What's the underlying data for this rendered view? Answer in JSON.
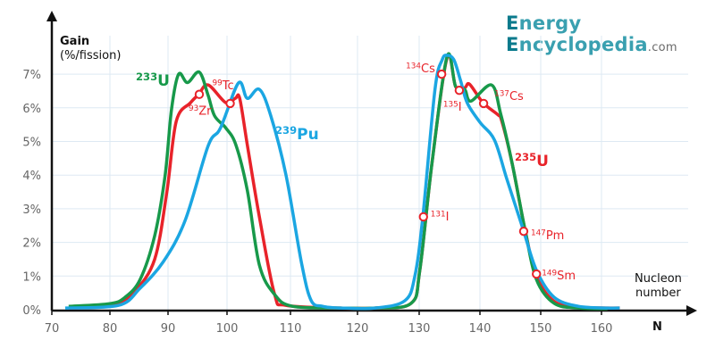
{
  "logo": {
    "first_initial": "E",
    "first_rest": "nergy ",
    "second_initial": "E",
    "second_rest": "ncyclopedia",
    "suffix": ".com"
  },
  "chart_data": {
    "type": "line",
    "ylabel": "Gain",
    "ylabel_unit": "(%/fission)",
    "xlabel_symbol": "N",
    "xlabel": [
      "Nucleon",
      "number"
    ],
    "xlim": [
      70,
      165
    ],
    "ylim": [
      0,
      8
    ],
    "x_ticks": [
      70,
      80,
      90,
      100,
      110,
      120,
      130,
      140,
      150,
      160
    ],
    "x_tick_labels": [
      "70",
      "80",
      "90",
      "100",
      "110",
      "120",
      "130",
      "140",
      "150",
      "160"
    ],
    "y_ticks": [
      0,
      1,
      2,
      3,
      4,
      5,
      6,
      7
    ],
    "y_tick_labels": [
      "0%",
      "1%",
      "2%",
      "3%",
      "4%",
      "5%",
      "6%",
      "7%"
    ],
    "grid": true,
    "series": [
      {
        "name": "233U",
        "mass": "233",
        "element": "U",
        "color": "#17994a",
        "points": [
          [
            72.9,
            0.1
          ],
          [
            80,
            0.18
          ],
          [
            82.6,
            0.37
          ],
          [
            85.2,
            0.9
          ],
          [
            87.7,
            2.2
          ],
          [
            89.5,
            4.0
          ],
          [
            90.6,
            5.97
          ],
          [
            91.8,
            7.0
          ],
          [
            93.3,
            6.75
          ],
          [
            95.3,
            7.06
          ],
          [
            96.8,
            6.37
          ],
          [
            97.9,
            5.76
          ],
          [
            99.8,
            5.4
          ],
          [
            101.4,
            4.9
          ],
          [
            103.2,
            3.55
          ],
          [
            105.1,
            1.33
          ],
          [
            107.5,
            0.45
          ],
          [
            110.3,
            0.1
          ],
          [
            117.3,
            0.05
          ],
          [
            122.9,
            0.05
          ],
          [
            128.7,
            0.19
          ],
          [
            130.1,
            1.17
          ],
          [
            132.1,
            4.35
          ],
          [
            134.6,
            7.53
          ],
          [
            136.0,
            6.63
          ],
          [
            137.5,
            6.55
          ],
          [
            138.5,
            6.2
          ],
          [
            141.9,
            6.68
          ],
          [
            143.4,
            5.83
          ],
          [
            145.3,
            4.35
          ],
          [
            147.4,
            2.39
          ],
          [
            149.3,
            0.9
          ],
          [
            152.2,
            0.19
          ],
          [
            156.2,
            0.05
          ],
          [
            161,
            0.03
          ]
        ]
      },
      {
        "name": "235U",
        "mass": "235",
        "element": "U",
        "color": "#e8232a",
        "points": [
          [
            72.9,
            0.05
          ],
          [
            80.6,
            0.13
          ],
          [
            84.2,
            0.53
          ],
          [
            87.7,
            1.5
          ],
          [
            89.8,
            3.5
          ],
          [
            91.4,
            5.6
          ],
          [
            93.8,
            6.15
          ],
          [
            95.2,
            6.4
          ],
          [
            96.8,
            6.68
          ],
          [
            99.8,
            6.15
          ],
          [
            101.3,
            6.28
          ],
          [
            102.0,
            6.28
          ],
          [
            103.2,
            4.9
          ],
          [
            105.1,
            2.76
          ],
          [
            107.5,
            0.45
          ],
          [
            109.3,
            0.13
          ],
          [
            117.3,
            0.05
          ],
          [
            122.9,
            0.05
          ],
          [
            128.7,
            0.19
          ],
          [
            130.1,
            1.17
          ],
          [
            132.1,
            4.35
          ],
          [
            134.6,
            7.5
          ],
          [
            136.0,
            6.63
          ],
          [
            137.5,
            6.6
          ],
          [
            138.3,
            6.7
          ],
          [
            140.5,
            6.15
          ],
          [
            142.9,
            5.8
          ],
          [
            143.6,
            5.6
          ],
          [
            145.3,
            4.35
          ],
          [
            147.4,
            2.39
          ],
          [
            149.3,
            1.0
          ],
          [
            152.2,
            0.25
          ],
          [
            156.2,
            0.08
          ],
          [
            161,
            0.05
          ],
          [
            163,
            0.05
          ]
        ]
      },
      {
        "name": "239Pu",
        "mass": "239",
        "element": "Pu",
        "color": "#1ba6e2",
        "points": [
          [
            72.3,
            0.05
          ],
          [
            81.5,
            0.13
          ],
          [
            85.2,
            0.64
          ],
          [
            89.2,
            1.43
          ],
          [
            92.9,
            2.65
          ],
          [
            96.8,
            4.87
          ],
          [
            98.9,
            5.4
          ],
          [
            101.8,
            6.74
          ],
          [
            103.2,
            6.28
          ],
          [
            105.1,
            6.55
          ],
          [
            106.9,
            5.76
          ],
          [
            109.3,
            4.0
          ],
          [
            111.7,
            1.33
          ],
          [
            113.1,
            0.27
          ],
          [
            114.8,
            0.1
          ],
          [
            117.3,
            0.05
          ],
          [
            122.9,
            0.05
          ],
          [
            127.7,
            0.27
          ],
          [
            129.3,
            1.0
          ],
          [
            130.6,
            2.76
          ],
          [
            132.6,
            6.55
          ],
          [
            133.8,
            7.43
          ],
          [
            134.6,
            7.56
          ],
          [
            135.7,
            7.43
          ],
          [
            136.8,
            6.82
          ],
          [
            137.9,
            6.15
          ],
          [
            140.0,
            5.57
          ],
          [
            142.4,
            5.04
          ],
          [
            144.4,
            3.9
          ],
          [
            147.1,
            2.39
          ],
          [
            149.3,
            1.17
          ],
          [
            152.2,
            0.37
          ],
          [
            156.2,
            0.1
          ],
          [
            161,
            0.05
          ],
          [
            163,
            0.05
          ]
        ]
      }
    ],
    "annotations": [
      {
        "mass": "93",
        "element": "Zr",
        "x": 95.3,
        "y": 6.4
      },
      {
        "mass": "99",
        "element": "Tc",
        "x": 100.5,
        "y": 6.13
      },
      {
        "mass": "134",
        "element": "Cs",
        "x": 133.7,
        "y": 7.0
      },
      {
        "mass": "135",
        "element": "I",
        "x": 136.6,
        "y": 6.52
      },
      {
        "mass": "137",
        "element": "Cs",
        "x": 140.6,
        "y": 6.13
      },
      {
        "mass": "131",
        "element": "I",
        "x": 130.7,
        "y": 2.76
      },
      {
        "mass": "147",
        "element": "Pm",
        "x": 147.2,
        "y": 2.33
      },
      {
        "mass": "149",
        "element": "Sm",
        "x": 149.3,
        "y": 1.06
      }
    ],
    "annotation_color": "#e8232a"
  }
}
